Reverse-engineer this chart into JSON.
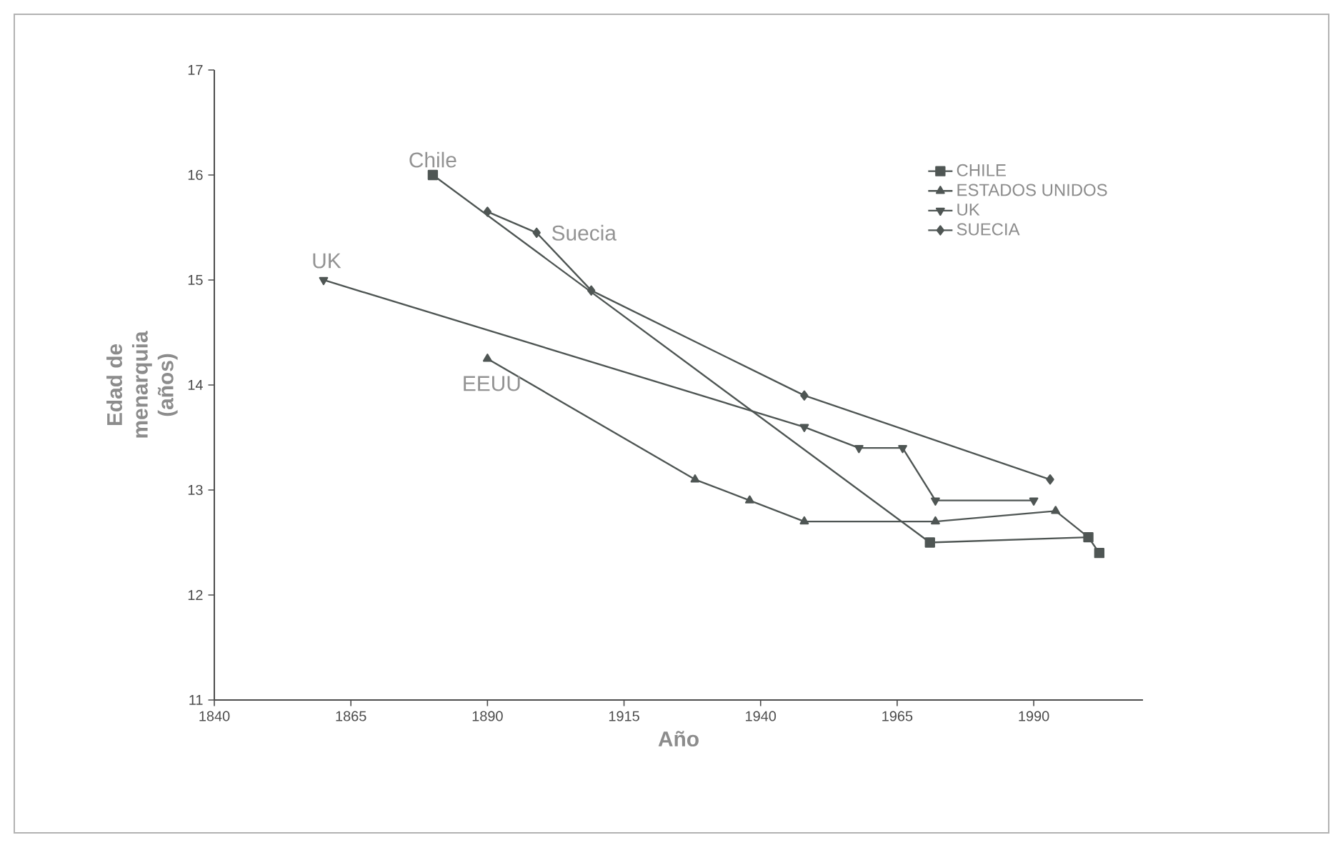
{
  "chart_data": {
    "type": "line",
    "xlabel": "Año",
    "ylabel": "Edad de menarquia (años)",
    "xlim": [
      1840,
      2010
    ],
    "xticks": [
      1840,
      1865,
      1890,
      1915,
      1940,
      1965,
      1990
    ],
    "ylim": [
      11,
      17
    ],
    "yticks": [
      11,
      12,
      13,
      14,
      15,
      16,
      17
    ],
    "legend": "top right",
    "grid": false,
    "series": [
      {
        "name": "CHILE",
        "color": "#4f5654",
        "marker": "square",
        "x": [
          1880,
          1971,
          2000,
          2002
        ],
        "values": [
          16.0,
          12.5,
          12.55,
          12.4
        ]
      },
      {
        "name": "ESTADOS UNIDOS",
        "color": "#4f5654",
        "marker": "triangle",
        "x": [
          1890,
          1928,
          1938,
          1948,
          1972,
          1994,
          2000
        ],
        "values": [
          14.25,
          13.1,
          12.9,
          12.7,
          12.7,
          12.8,
          12.55
        ]
      },
      {
        "name": "UK",
        "color": "#4f5654",
        "marker": "triangle",
        "x": [
          1860,
          1948,
          1958,
          1966,
          1972,
          1990
        ],
        "values": [
          15.0,
          13.6,
          13.4,
          13.4,
          12.9,
          12.9
        ]
      },
      {
        "name": "SUECIA",
        "color": "#4f5654",
        "marker": "diamond",
        "x": [
          1890,
          1899,
          1909,
          1948,
          1993
        ],
        "values": [
          15.65,
          15.45,
          14.9,
          13.9,
          13.1
        ]
      }
    ],
    "annotations": [
      "Chile",
      "Suecia",
      "UK",
      "EEUU"
    ]
  }
}
